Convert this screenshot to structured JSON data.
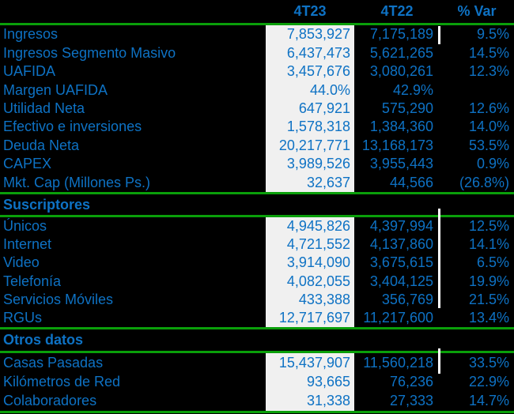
{
  "table": {
    "columns": [
      "4T23",
      "4T22",
      "% Var"
    ],
    "sections": [
      {
        "title": "",
        "rows": [
          [
            "Ingresos",
            "7,853,927",
            "7,175,189",
            "9.5%"
          ],
          [
            "Ingresos Segmento Masivo",
            "6,437,473",
            "5,621,265",
            "14.5%"
          ],
          [
            "UAFIDA",
            "3,457,676",
            "3,080,261",
            "12.3%"
          ],
          [
            "Margen UAFIDA",
            "44.0%",
            "42.9%",
            ""
          ],
          [
            "Utilidad Neta",
            "647,921",
            "575,290",
            "12.6%"
          ],
          [
            "Efectivo e inversiones",
            "1,578,318",
            "1,384,360",
            "14.0%"
          ],
          [
            "Deuda Neta",
            "20,217,771",
            "13,168,173",
            "53.5%"
          ],
          [
            "CAPEX",
            "3,989,526",
            "3,955,443",
            "0.9%"
          ],
          [
            "Mkt. Cap (Millones Ps.)",
            "32,637",
            "44,566",
            "(26.8%)"
          ]
        ]
      },
      {
        "title": "Suscriptores",
        "rows": [
          [
            "Únicos",
            "4,945,826",
            "4,397,994",
            "12.5%"
          ],
          [
            "Internet",
            "4,721,552",
            "4,137,860",
            "14.1%"
          ],
          [
            "Video",
            "3,914,090",
            "3,675,615",
            "6.5%"
          ],
          [
            "Telefonía",
            "4,082,055",
            "3,404,125",
            "19.9%"
          ],
          [
            "Servicios Móviles",
            "433,388",
            "356,769",
            "21.5%"
          ],
          [
            "RGUs",
            "12,717,697",
            "11,217,600",
            "13.4%"
          ]
        ]
      },
      {
        "title": "Otros datos",
        "rows": [
          [
            "Casas Pasadas",
            "15,437,907",
            "11,560,218",
            "33.5%"
          ],
          [
            "Kilómetros de Red",
            "93,665",
            "76,236",
            "22.9%"
          ],
          [
            "Colaboradores",
            "31,338",
            "27,333",
            "14.7%"
          ]
        ]
      }
    ]
  },
  "colors": {
    "background": "#000000",
    "text_blue": "#0E72C4",
    "divider_green": "#0A9F0A",
    "highlight_column_bg": "#F0F0F0",
    "gridline_artifact": "#FFFFFF"
  }
}
